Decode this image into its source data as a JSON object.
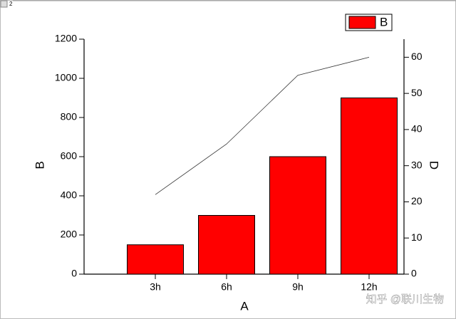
{
  "window_label": "2",
  "watermark": "知乎 @联川生物",
  "chart_data": {
    "type": "bar",
    "xlabel": "A",
    "ylabel": "B",
    "y2label": "D",
    "categories": [
      "3h",
      "6h",
      "9h",
      "12h"
    ],
    "series": [
      {
        "name": "B",
        "type": "bar",
        "color": "#ff0000",
        "values": [
          150,
          300,
          600,
          900
        ]
      },
      {
        "type": "line",
        "axis": "y2",
        "color": "#333333",
        "values": [
          22,
          36,
          55,
          60
        ]
      }
    ],
    "ylim": [
      0,
      1200
    ],
    "yticks": [
      0,
      200,
      400,
      600,
      800,
      1000,
      1200
    ],
    "y2lim": [
      0,
      65
    ],
    "y2ticks": [
      0,
      10,
      20,
      30,
      40,
      50,
      60
    ],
    "legend": "top-right"
  }
}
